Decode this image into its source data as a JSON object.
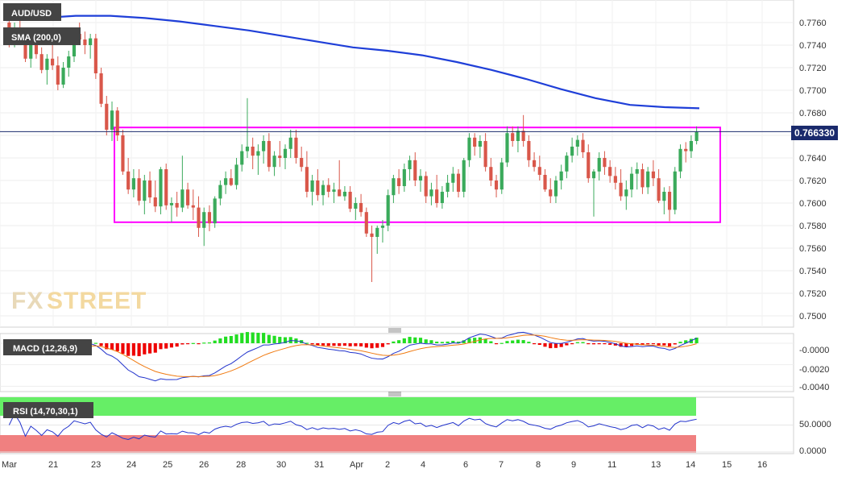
{
  "main": {
    "symbol": "AUD/USD",
    "indicator": "SMA (200,0)",
    "price_tag": "0.766330",
    "brand": "FXSTREET",
    "brand_fx": "FX",
    "brand_street": "STREET",
    "colors": {
      "up": "#3aaa5b",
      "down": "#d9574a",
      "sma": "#1f3fd8",
      "box": "#ff00ff",
      "price_line": "#1a2a6c"
    }
  },
  "macd": {
    "label": "MACD (12,26,9)",
    "y_ticks": [
      "-0.0000",
      "-0.0020",
      "-0.0040"
    ],
    "colors": {
      "macd_line": "#2233cc",
      "signal_line": "#f07a10",
      "hist_pos": "#22dd22",
      "hist_neg": "#ee0000"
    }
  },
  "rsi": {
    "label": "RSI (14,70,30,1)",
    "y_ticks": [
      "50.0000",
      "0.0000"
    ],
    "colors": {
      "line": "#2233cc",
      "overbought": "#66ee66",
      "oversold": "#f08080"
    }
  },
  "x_labels": [
    "Mar",
    "21",
    "23",
    "24",
    "25",
    "26",
    "28",
    "30",
    "31",
    "Apr",
    "2",
    "4",
    "6",
    "7",
    "8",
    "9",
    "11",
    "13",
    "14",
    "15",
    "16"
  ],
  "chart_data": {
    "type": "candlestick",
    "ylim": [
      0.749,
      0.778
    ],
    "y_ticks": [
      "0.7760",
      "0.7740",
      "0.7720",
      "0.7700",
      "0.7680",
      "0.7660",
      "0.7640",
      "0.7620",
      "0.7600",
      "0.7580",
      "0.7560",
      "0.7540",
      "0.7520",
      "0.7500"
    ],
    "current_price": 0.76633,
    "range_box": {
      "high": 0.7667,
      "low": 0.7583
    },
    "candles": [
      [
        0.776,
        0.7762,
        0.7738,
        0.7742
      ],
      [
        0.7742,
        0.776,
        0.7738,
        0.7755
      ],
      [
        0.7755,
        0.7765,
        0.774,
        0.7745
      ],
      [
        0.7745,
        0.7752,
        0.7725,
        0.7728
      ],
      [
        0.7728,
        0.7745,
        0.772,
        0.774
      ],
      [
        0.774,
        0.7748,
        0.7728,
        0.7732
      ],
      [
        0.7732,
        0.7738,
        0.7715,
        0.7718
      ],
      [
        0.7718,
        0.7732,
        0.7705,
        0.7728
      ],
      [
        0.7728,
        0.774,
        0.7718,
        0.7722
      ],
      [
        0.7722,
        0.773,
        0.77,
        0.7705
      ],
      [
        0.7705,
        0.7725,
        0.7702,
        0.772
      ],
      [
        0.772,
        0.7735,
        0.7712,
        0.773
      ],
      [
        0.773,
        0.7755,
        0.7725,
        0.775
      ],
      [
        0.775,
        0.776,
        0.774,
        0.7745
      ],
      [
        0.7745,
        0.7752,
        0.7732,
        0.774
      ],
      [
        0.774,
        0.775,
        0.7728,
        0.7746
      ],
      [
        0.7746,
        0.775,
        0.771,
        0.7715
      ],
      [
        0.7715,
        0.772,
        0.7685,
        0.7688
      ],
      [
        0.7688,
        0.7695,
        0.766,
        0.7665
      ],
      [
        0.7665,
        0.769,
        0.7655,
        0.7682
      ],
      [
        0.7682,
        0.7685,
        0.7655,
        0.766
      ],
      [
        0.766,
        0.7665,
        0.7625,
        0.7628
      ],
      [
        0.7628,
        0.764,
        0.7608,
        0.7612
      ],
      [
        0.7612,
        0.763,
        0.7605,
        0.7622
      ],
      [
        0.7622,
        0.763,
        0.7598,
        0.7602
      ],
      [
        0.7602,
        0.7625,
        0.759,
        0.762
      ],
      [
        0.762,
        0.7628,
        0.76,
        0.7605
      ],
      [
        0.7605,
        0.762,
        0.7592,
        0.7597
      ],
      [
        0.7597,
        0.7632,
        0.759,
        0.763
      ],
      [
        0.763,
        0.7635,
        0.7594,
        0.7598
      ],
      [
        0.7598,
        0.7605,
        0.7583,
        0.76
      ],
      [
        0.76,
        0.761,
        0.7588,
        0.7596
      ],
      [
        0.7596,
        0.7642,
        0.7592,
        0.7612
      ],
      [
        0.7612,
        0.7618,
        0.7595,
        0.7598
      ],
      [
        0.7598,
        0.7612,
        0.7585,
        0.7596
      ],
      [
        0.7596,
        0.7606,
        0.757,
        0.7578
      ],
      [
        0.7578,
        0.7596,
        0.7562,
        0.7592
      ],
      [
        0.7592,
        0.7598,
        0.7575,
        0.7582
      ],
      [
        0.7582,
        0.7606,
        0.7578,
        0.7604
      ],
      [
        0.7604,
        0.762,
        0.7598,
        0.7616
      ],
      [
        0.7616,
        0.7628,
        0.7608,
        0.7622
      ],
      [
        0.7622,
        0.763,
        0.7615,
        0.7616
      ],
      [
        0.7616,
        0.764,
        0.7612,
        0.7634
      ],
      [
        0.7634,
        0.7652,
        0.7628,
        0.7646
      ],
      [
        0.7646,
        0.7693,
        0.764,
        0.765
      ],
      [
        0.765,
        0.7658,
        0.763,
        0.7642
      ],
      [
        0.7642,
        0.7652,
        0.7625,
        0.7646
      ],
      [
        0.7646,
        0.766,
        0.7635,
        0.7655
      ],
      [
        0.7655,
        0.7662,
        0.7628,
        0.7632
      ],
      [
        0.7632,
        0.7646,
        0.7624,
        0.7642
      ],
      [
        0.7642,
        0.7655,
        0.7632,
        0.764
      ],
      [
        0.764,
        0.7652,
        0.763,
        0.7648
      ],
      [
        0.7648,
        0.7665,
        0.764,
        0.7658
      ],
      [
        0.7658,
        0.7665,
        0.7635,
        0.764
      ],
      [
        0.764,
        0.765,
        0.7628,
        0.7632
      ],
      [
        0.7632,
        0.7646,
        0.7605,
        0.761
      ],
      [
        0.761,
        0.7625,
        0.7598,
        0.762
      ],
      [
        0.762,
        0.763,
        0.7602,
        0.7607
      ],
      [
        0.7607,
        0.762,
        0.7598,
        0.7616
      ],
      [
        0.7616,
        0.7622,
        0.7605,
        0.761
      ],
      [
        0.761,
        0.7618,
        0.76,
        0.7612
      ],
      [
        0.7612,
        0.7638,
        0.7608,
        0.7606
      ],
      [
        0.7606,
        0.7615,
        0.7602,
        0.761
      ],
      [
        0.761,
        0.7615,
        0.7592,
        0.7595
      ],
      [
        0.7595,
        0.7605,
        0.7585,
        0.76
      ],
      [
        0.76,
        0.7608,
        0.7588,
        0.7592
      ],
      [
        0.7592,
        0.7596,
        0.757,
        0.7573
      ],
      [
        0.7573,
        0.758,
        0.753,
        0.757
      ],
      [
        0.757,
        0.758,
        0.7555,
        0.7578
      ],
      [
        0.7578,
        0.7585,
        0.7565,
        0.758
      ],
      [
        0.758,
        0.7612,
        0.7575,
        0.7607
      ],
      [
        0.7607,
        0.7625,
        0.76,
        0.7622
      ],
      [
        0.7622,
        0.763,
        0.7608,
        0.7615
      ],
      [
        0.7615,
        0.7635,
        0.761,
        0.763
      ],
      [
        0.763,
        0.7642,
        0.762,
        0.7638
      ],
      [
        0.7638,
        0.7645,
        0.7615,
        0.762
      ],
      [
        0.762,
        0.763,
        0.761,
        0.7624
      ],
      [
        0.7624,
        0.7628,
        0.76,
        0.7606
      ],
      [
        0.7606,
        0.7618,
        0.7598,
        0.7612
      ],
      [
        0.7612,
        0.7625,
        0.7596,
        0.76
      ],
      [
        0.76,
        0.7615,
        0.7595,
        0.761
      ],
      [
        0.761,
        0.7625,
        0.7605,
        0.7618
      ],
      [
        0.7618,
        0.7632,
        0.761,
        0.7626
      ],
      [
        0.7626,
        0.763,
        0.7605,
        0.761
      ],
      [
        0.761,
        0.764,
        0.7605,
        0.7638
      ],
      [
        0.7638,
        0.7662,
        0.7632,
        0.7658
      ],
      [
        0.7658,
        0.7662,
        0.7642,
        0.765
      ],
      [
        0.765,
        0.766,
        0.764,
        0.7655
      ],
      [
        0.7655,
        0.7662,
        0.7628,
        0.7632
      ],
      [
        0.7632,
        0.764,
        0.7615,
        0.762
      ],
      [
        0.762,
        0.7625,
        0.7605,
        0.7612
      ],
      [
        0.7612,
        0.764,
        0.7608,
        0.7636
      ],
      [
        0.7636,
        0.7668,
        0.7632,
        0.7662
      ],
      [
        0.7662,
        0.7668,
        0.765,
        0.7655
      ],
      [
        0.7655,
        0.7668,
        0.7645,
        0.7664
      ],
      [
        0.7664,
        0.7678,
        0.765,
        0.7655
      ],
      [
        0.7655,
        0.766,
        0.7632,
        0.7638
      ],
      [
        0.7638,
        0.7645,
        0.7628,
        0.7632
      ],
      [
        0.7632,
        0.7642,
        0.762,
        0.7625
      ],
      [
        0.7625,
        0.763,
        0.761,
        0.7612
      ],
      [
        0.7612,
        0.7622,
        0.76,
        0.7606
      ],
      [
        0.7606,
        0.7624,
        0.76,
        0.762
      ],
      [
        0.762,
        0.7634,
        0.7612,
        0.7628
      ],
      [
        0.7628,
        0.7645,
        0.7622,
        0.7642
      ],
      [
        0.7642,
        0.7658,
        0.7636,
        0.765
      ],
      [
        0.765,
        0.766,
        0.7642,
        0.7656
      ],
      [
        0.7656,
        0.7662,
        0.764,
        0.7645
      ],
      [
        0.7645,
        0.7652,
        0.7618,
        0.7622
      ],
      [
        0.7622,
        0.763,
        0.7588,
        0.7628
      ],
      [
        0.7628,
        0.7645,
        0.762,
        0.764
      ],
      [
        0.764,
        0.7646,
        0.7625,
        0.7632
      ],
      [
        0.7632,
        0.7638,
        0.7618,
        0.7624
      ],
      [
        0.7624,
        0.7632,
        0.7612,
        0.7618
      ],
      [
        0.7618,
        0.763,
        0.7602,
        0.7606
      ],
      [
        0.7606,
        0.762,
        0.7594,
        0.7612
      ],
      [
        0.7612,
        0.7632,
        0.7605,
        0.7626
      ],
      [
        0.7626,
        0.7636,
        0.7612,
        0.763
      ],
      [
        0.763,
        0.7635,
        0.7608,
        0.7614
      ],
      [
        0.7614,
        0.7632,
        0.7608,
        0.7628
      ],
      [
        0.7628,
        0.7638,
        0.7615,
        0.7622
      ],
      [
        0.7622,
        0.763,
        0.76,
        0.7602
      ],
      [
        0.7602,
        0.7614,
        0.759,
        0.761
      ],
      [
        0.761,
        0.7615,
        0.7584,
        0.7594
      ],
      [
        0.7594,
        0.7632,
        0.759,
        0.7628
      ],
      [
        0.7628,
        0.7652,
        0.7622,
        0.7648
      ],
      [
        0.7648,
        0.7654,
        0.7636,
        0.7646
      ],
      [
        0.7646,
        0.766,
        0.764,
        0.7655
      ],
      [
        0.7655,
        0.7668,
        0.7652,
        0.7663
      ]
    ],
    "sma200": [
      [
        0,
        0.7762
      ],
      [
        0.05,
        0.7764
      ],
      [
        0.1,
        0.7766
      ],
      [
        0.15,
        0.7766
      ],
      [
        0.2,
        0.7764
      ],
      [
        0.25,
        0.7761
      ],
      [
        0.3,
        0.7757
      ],
      [
        0.35,
        0.7753
      ],
      [
        0.4,
        0.7748
      ],
      [
        0.45,
        0.7743
      ],
      [
        0.5,
        0.7738
      ],
      [
        0.55,
        0.7735
      ],
      [
        0.6,
        0.7731
      ],
      [
        0.65,
        0.7725
      ],
      [
        0.7,
        0.7718
      ],
      [
        0.75,
        0.771
      ],
      [
        0.8,
        0.7701
      ],
      [
        0.85,
        0.7693
      ],
      [
        0.9,
        0.7687
      ],
      [
        0.95,
        0.7685
      ],
      [
        1.0,
        0.7684
      ]
    ]
  }
}
